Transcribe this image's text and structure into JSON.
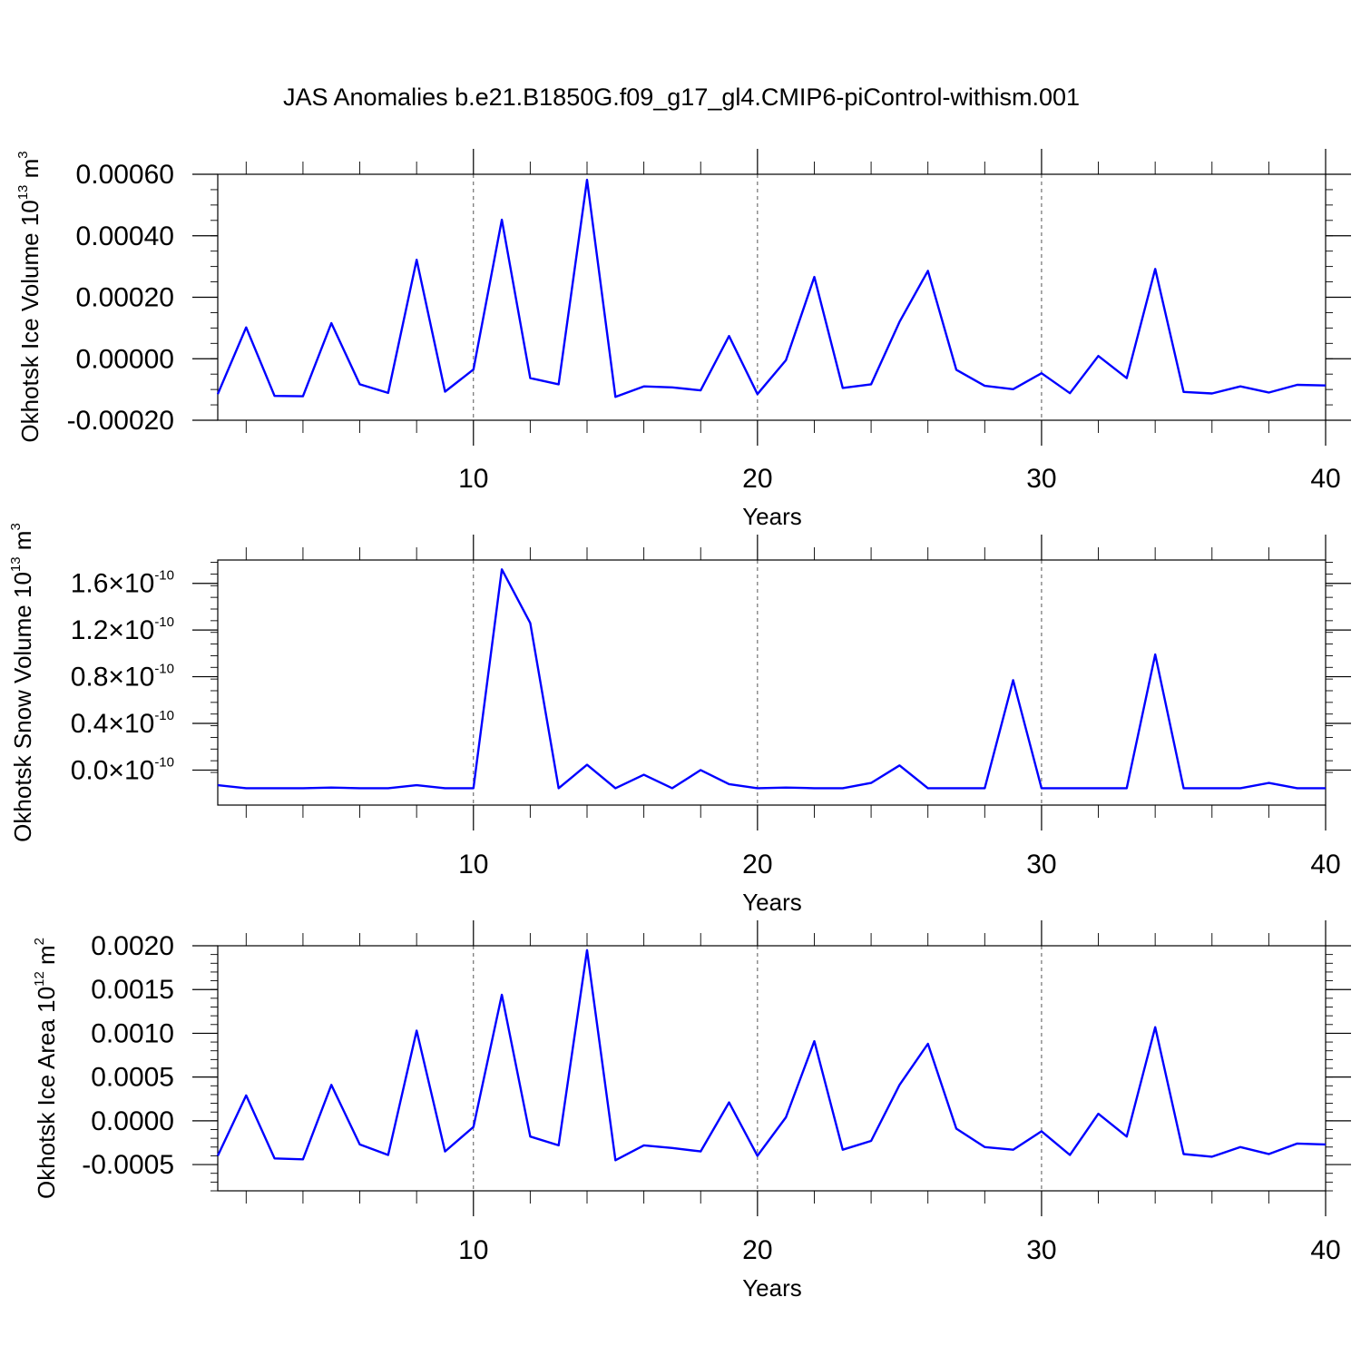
{
  "title": "JAS Anomalies b.e21.B1850G.f09_g17_gl4.CMIP6-piControl-withism.001",
  "colors": {
    "series": "#0000ff",
    "axis": "#000000",
    "grid": "#555555"
  },
  "chart_data": [
    {
      "type": "line",
      "ylabel": {
        "text": "Okhotsk Ice Volume 10",
        "exp": "13",
        "unit": " m",
        "unit_exp": "3"
      },
      "xlabel": "Years",
      "xlim": [
        1,
        40
      ],
      "ylim": [
        -0.0002,
        0.0006
      ],
      "x_ticks": [
        10,
        20,
        30,
        40
      ],
      "x_tick_labels": [
        "10",
        "20",
        "30",
        "40"
      ],
      "y_ticks": [
        -0.0002,
        0.0,
        0.0002,
        0.0004,
        0.0006
      ],
      "y_tick_labels": [
        "-0.00020",
        "0.00000",
        "0.00020",
        "0.00040",
        "0.00060"
      ],
      "grid": "dashed vertical lines at major x ticks",
      "series": [
        {
          "color": "#0000ff",
          "x": [
            1,
            2,
            3,
            4,
            5,
            6,
            7,
            8,
            9,
            10,
            11,
            12,
            13,
            14,
            15,
            16,
            17,
            18,
            19,
            20,
            21,
            22,
            23,
            24,
            25,
            26,
            27,
            28,
            29,
            30,
            31,
            32,
            33,
            34,
            35,
            36,
            37,
            38,
            39,
            40
          ],
          "values": [
            -0.000115,
            0.000102,
            -0.000121,
            -0.000122,
            0.000116,
            -8.3e-05,
            -0.000111,
            0.000322,
            -0.000107,
            -3.5e-05,
            0.000452,
            -6.3e-05,
            -8.3e-05,
            0.000582,
            -0.000124,
            -9e-05,
            -9.3e-05,
            -0.000103,
            7.4e-05,
            -0.000115,
            -5e-06,
            0.000266,
            -9.5e-05,
            -8.3e-05,
            0.00012,
            0.000286,
            -3.6e-05,
            -8.8e-05,
            -9.9e-05,
            -4.7e-05,
            -0.000112,
            9e-06,
            -6.3e-05,
            0.000292,
            -0.000108,
            -0.000113,
            -9e-05,
            -0.00011,
            -8.5e-05,
            -8.7e-05
          ]
        }
      ]
    },
    {
      "type": "line",
      "ylabel": {
        "text": "Okhotsk Snow Volume 10",
        "exp": "13",
        "unit": " m",
        "unit_exp": "3"
      },
      "xlabel": "Years",
      "xlim": [
        1,
        40
      ],
      "ylim": [
        -3e-11,
        1.8e-10
      ],
      "x_ticks": [
        10,
        20,
        30,
        40
      ],
      "x_tick_labels": [
        "10",
        "20",
        "30",
        "40"
      ],
      "y_ticks": [
        0.0,
        4e-11,
        8e-11,
        1.2e-10,
        1.6e-10
      ],
      "y_tick_labels": [
        {
          "mantissa": "0.0",
          "exp": "-10"
        },
        {
          "mantissa": "0.4",
          "exp": "-10"
        },
        {
          "mantissa": "0.8",
          "exp": "-10"
        },
        {
          "mantissa": "1.2",
          "exp": "-10"
        },
        {
          "mantissa": "1.6",
          "exp": "-10"
        }
      ],
      "grid": "dashed vertical lines at major x ticks",
      "series": [
        {
          "color": "#0000ff",
          "x": [
            1,
            2,
            3,
            4,
            5,
            6,
            7,
            8,
            9,
            10,
            11,
            12,
            13,
            14,
            15,
            16,
            17,
            18,
            19,
            20,
            21,
            22,
            23,
            24,
            25,
            26,
            27,
            28,
            29,
            30,
            31,
            32,
            33,
            34,
            35,
            36,
            37,
            38,
            39,
            40
          ],
          "values": [
            -1.3e-11,
            -1.55e-11,
            -1.55e-11,
            -1.55e-11,
            -1.5e-11,
            -1.55e-11,
            -1.55e-11,
            -1.3e-11,
            -1.55e-11,
            -1.55e-11,
            1.72e-10,
            1.26e-10,
            -1.55e-11,
            4.5e-12,
            -1.55e-11,
            -4e-12,
            -1.55e-11,
            0.0,
            -1.2e-11,
            -1.55e-11,
            -1.5e-11,
            -1.55e-11,
            -1.55e-11,
            -1.1e-11,
            4e-12,
            -1.55e-11,
            -1.55e-11,
            -1.55e-11,
            7.7e-11,
            -1.55e-11,
            -1.55e-11,
            -1.55e-11,
            -1.55e-11,
            9.9e-11,
            -1.55e-11,
            -1.55e-11,
            -1.55e-11,
            -1.1e-11,
            -1.55e-11,
            -1.55e-11
          ]
        }
      ]
    },
    {
      "type": "line",
      "ylabel": {
        "text": "Okhotsk Ice Area 10",
        "exp": "12",
        "unit": " m",
        "unit_exp": "2"
      },
      "xlabel": "Years",
      "xlim": [
        1,
        40
      ],
      "ylim": [
        -0.0008,
        0.002
      ],
      "x_ticks": [
        10,
        20,
        30,
        40
      ],
      "x_tick_labels": [
        "10",
        "20",
        "30",
        "40"
      ],
      "y_ticks": [
        -0.0005,
        0.0,
        0.0005,
        0.001,
        0.0015,
        0.002
      ],
      "y_tick_labels": [
        "-0.0005",
        "0.0000",
        "0.0005",
        "0.0010",
        "0.0015",
        "0.0020"
      ],
      "grid": "dashed vertical lines at major x ticks",
      "series": [
        {
          "color": "#0000ff",
          "x": [
            1,
            2,
            3,
            4,
            5,
            6,
            7,
            8,
            9,
            10,
            11,
            12,
            13,
            14,
            15,
            16,
            17,
            18,
            19,
            20,
            21,
            22,
            23,
            24,
            25,
            26,
            27,
            28,
            29,
            30,
            31,
            32,
            33,
            34,
            35,
            36,
            37,
            38,
            39,
            40
          ],
          "values": [
            -0.0004,
            0.00029,
            -0.00043,
            -0.00044,
            0.00041,
            -0.00027,
            -0.00039,
            0.00103,
            -0.00035,
            -7e-05,
            0.00144,
            -0.00018,
            -0.00028,
            0.00195,
            -0.00045,
            -0.00028,
            -0.00031,
            -0.00035,
            0.00021,
            -0.0004,
            4e-05,
            0.00091,
            -0.00033,
            -0.00023,
            0.00041,
            0.00088,
            -9e-05,
            -0.0003,
            -0.00033,
            -0.00012,
            -0.00039,
            8e-05,
            -0.00018,
            0.00107,
            -0.00038,
            -0.00041,
            -0.0003,
            -0.00038,
            -0.00026,
            -0.00027
          ]
        }
      ]
    }
  ]
}
